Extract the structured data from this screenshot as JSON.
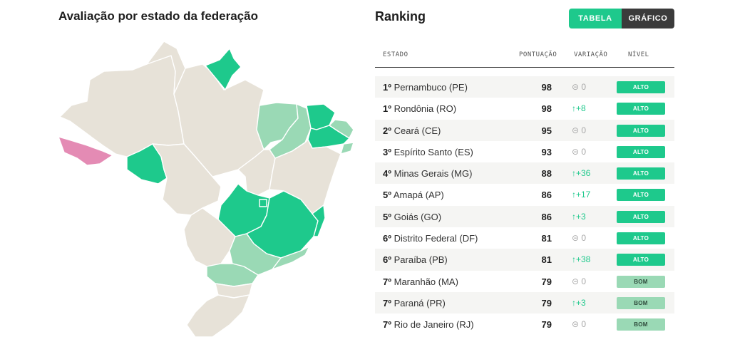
{
  "map": {
    "title": "Avaliação por estado da federação",
    "colors": {
      "alto": "#1ec98c",
      "bom": "#9ad9b5",
      "neutral": "#e7e2d8",
      "low": "#e48bb4"
    }
  },
  "ranking": {
    "title": "Ranking",
    "toggle": {
      "tabela": "TABELA",
      "grafico": "GRÁFICO"
    },
    "headers": {
      "estado": "ESTADO",
      "pontuacao": "PONTUAÇÃO",
      "variacao": "VARIAÇÃO",
      "nivel": "NÍVEL"
    },
    "rows": [
      {
        "pos": "1º",
        "name": "Pernambuco (PE)",
        "score": "98",
        "variation": "0",
        "variation_type": "neutral",
        "level": "ALTO"
      },
      {
        "pos": "1º",
        "name": "Rondônia (RO)",
        "score": "98",
        "variation": "+8",
        "variation_type": "up",
        "level": "ALTO"
      },
      {
        "pos": "2º",
        "name": "Ceará (CE)",
        "score": "95",
        "variation": "0",
        "variation_type": "neutral",
        "level": "ALTO"
      },
      {
        "pos": "3º",
        "name": "Espírito Santo (ES)",
        "score": "93",
        "variation": "0",
        "variation_type": "neutral",
        "level": "ALTO"
      },
      {
        "pos": "4º",
        "name": "Minas Gerais (MG)",
        "score": "88",
        "variation": "+36",
        "variation_type": "up",
        "level": "ALTO"
      },
      {
        "pos": "5º",
        "name": "Amapá (AP)",
        "score": "86",
        "variation": "+17",
        "variation_type": "up",
        "level": "ALTO"
      },
      {
        "pos": "5º",
        "name": "Goiás (GO)",
        "score": "86",
        "variation": "+3",
        "variation_type": "up",
        "level": "ALTO"
      },
      {
        "pos": "6º",
        "name": "Distrito Federal (DF)",
        "score": "81",
        "variation": "0",
        "variation_type": "neutral",
        "level": "ALTO"
      },
      {
        "pos": "6º",
        "name": "Paraíba (PB)",
        "score": "81",
        "variation": "+38",
        "variation_type": "up",
        "level": "ALTO"
      },
      {
        "pos": "7º",
        "name": "Maranhão (MA)",
        "score": "79",
        "variation": "0",
        "variation_type": "neutral",
        "level": "BOM"
      },
      {
        "pos": "7º",
        "name": "Paraná (PR)",
        "score": "79",
        "variation": "+3",
        "variation_type": "up",
        "level": "BOM"
      },
      {
        "pos": "7º",
        "name": "Rio de Janeiro (RJ)",
        "score": "79",
        "variation": "0",
        "variation_type": "neutral",
        "level": "BOM"
      }
    ]
  }
}
